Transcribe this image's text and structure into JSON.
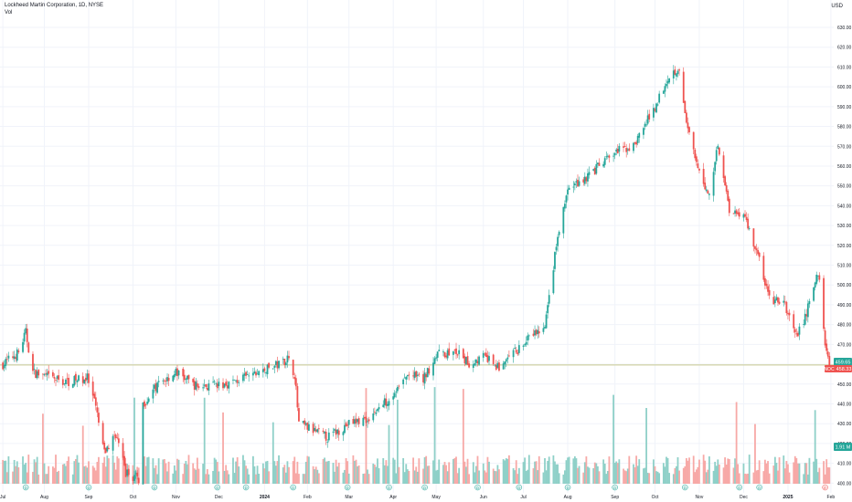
{
  "header": {
    "title": "Lockheed Martin Corporation, 1D, NYSE",
    "volume_label": "Vol",
    "currency": "USD"
  },
  "colors": {
    "up": "#26a69a",
    "down": "#ef5350",
    "up_volume": "#8fd0c8",
    "down_volume": "#f7a9a7",
    "price_line": "#c8c98f",
    "grid": "#f0f3fa",
    "axis_text": "#131722"
  },
  "price_axis": {
    "ticks": [
      "630.00",
      "620.00",
      "610.00",
      "600.00",
      "590.00",
      "580.00",
      "570.00",
      "560.00",
      "550.00",
      "540.00",
      "530.00",
      "520.00",
      "510.00",
      "500.00",
      "490.00",
      "480.00",
      "470.00",
      "460.00",
      "450.00",
      "440.00",
      "430.00",
      "420.00",
      "410.00",
      "400.00"
    ]
  },
  "time_axis": {
    "labels": [
      "Jul",
      "Aug",
      "Sep",
      "Oct",
      "Nov",
      "Dec",
      "2024",
      "Feb",
      "Mar",
      "Apr",
      "May",
      "Jun",
      "Jul",
      "Aug",
      "Sep",
      "Oct",
      "Nov",
      "Dec",
      "2025",
      "Feb"
    ]
  },
  "markers": {
    "dividend_symbol": "D",
    "earnings_symbol": "E"
  },
  "badges": {
    "last_price": "459.65",
    "last_price_label": "NOC",
    "last_close": "458.33",
    "volume": "1.91 M"
  },
  "chart_data": {
    "type": "candlestick",
    "title": "Lockheed Martin Corporation, 1D, NYSE",
    "ylim": [
      398,
      632
    ],
    "price_path": [
      {
        "date": "2023-07-03",
        "close": 460
      },
      {
        "date": "2023-07-14",
        "close": 466
      },
      {
        "date": "2023-07-19",
        "close": 476
      },
      {
        "date": "2023-07-24",
        "close": 456
      },
      {
        "date": "2023-08-01",
        "close": 454
      },
      {
        "date": "2023-08-15",
        "close": 451
      },
      {
        "date": "2023-08-31",
        "close": 453
      },
      {
        "date": "2023-09-06",
        "close": 438
      },
      {
        "date": "2023-09-12",
        "close": 415
      },
      {
        "date": "2023-09-20",
        "close": 425
      },
      {
        "date": "2023-09-27",
        "close": 405
      },
      {
        "date": "2023-10-06",
        "close": 402
      },
      {
        "date": "2023-10-09",
        "close": 440
      },
      {
        "date": "2023-10-20",
        "close": 450
      },
      {
        "date": "2023-11-01",
        "close": 456
      },
      {
        "date": "2023-11-15",
        "close": 449
      },
      {
        "date": "2023-12-01",
        "close": 449
      },
      {
        "date": "2023-12-15",
        "close": 452
      },
      {
        "date": "2024-01-02",
        "close": 457
      },
      {
        "date": "2024-01-12",
        "close": 460
      },
      {
        "date": "2024-01-18",
        "close": 463
      },
      {
        "date": "2024-01-23",
        "close": 455
      },
      {
        "date": "2024-01-26",
        "close": 430
      },
      {
        "date": "2024-02-01",
        "close": 428
      },
      {
        "date": "2024-02-15",
        "close": 423
      },
      {
        "date": "2024-03-01",
        "close": 430
      },
      {
        "date": "2024-03-15",
        "close": 433
      },
      {
        "date": "2024-04-01",
        "close": 445
      },
      {
        "date": "2024-04-12",
        "close": 455
      },
      {
        "date": "2024-04-22",
        "close": 452
      },
      {
        "date": "2024-05-01",
        "close": 465
      },
      {
        "date": "2024-05-15",
        "close": 466
      },
      {
        "date": "2024-05-24",
        "close": 460
      },
      {
        "date": "2024-06-03",
        "close": 464
      },
      {
        "date": "2024-06-14",
        "close": 458
      },
      {
        "date": "2024-06-28",
        "close": 468
      },
      {
        "date": "2024-07-08",
        "close": 475
      },
      {
        "date": "2024-07-16",
        "close": 478
      },
      {
        "date": "2024-07-24",
        "close": 520
      },
      {
        "date": "2024-08-01",
        "close": 548
      },
      {
        "date": "2024-08-15",
        "close": 555
      },
      {
        "date": "2024-09-03",
        "close": 567
      },
      {
        "date": "2024-09-16",
        "close": 570
      },
      {
        "date": "2024-10-01",
        "close": 590
      },
      {
        "date": "2024-10-10",
        "close": 605
      },
      {
        "date": "2024-10-18",
        "close": 610
      },
      {
        "date": "2024-10-22",
        "close": 585
      },
      {
        "date": "2024-10-30",
        "close": 560
      },
      {
        "date": "2024-11-08",
        "close": 545
      },
      {
        "date": "2024-11-14",
        "close": 572
      },
      {
        "date": "2024-11-22",
        "close": 538
      },
      {
        "date": "2024-12-02",
        "close": 536
      },
      {
        "date": "2024-12-12",
        "close": 515
      },
      {
        "date": "2024-12-20",
        "close": 493
      },
      {
        "date": "2024-12-31",
        "close": 490
      },
      {
        "date": "2025-01-08",
        "close": 473
      },
      {
        "date": "2025-01-15",
        "close": 486
      },
      {
        "date": "2025-01-22",
        "close": 505
      },
      {
        "date": "2025-01-24",
        "close": 502
      },
      {
        "date": "2025-01-28",
        "close": 470
      },
      {
        "date": "2025-01-31",
        "close": 459.65
      }
    ],
    "last_price": 459.65
  }
}
